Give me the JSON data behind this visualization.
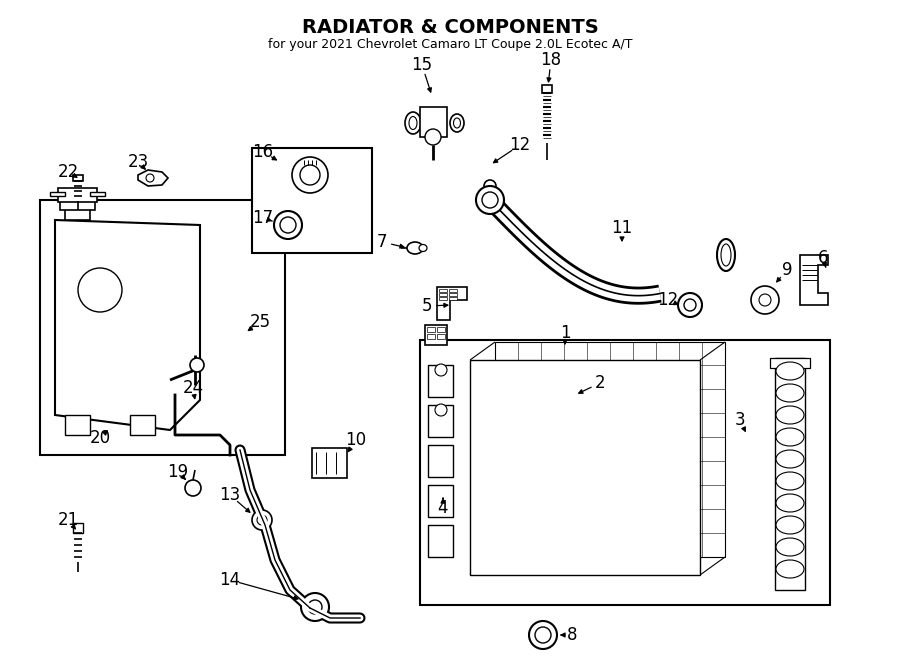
{
  "title": "RADIATOR & COMPONENTS",
  "subtitle": "for your 2021 Chevrolet Camaro LT Coupe 2.0L Ecotec A/T",
  "bg_color": "#ffffff",
  "line_color": "#000000",
  "fig_width": 9.0,
  "fig_height": 6.61,
  "dpi": 100
}
